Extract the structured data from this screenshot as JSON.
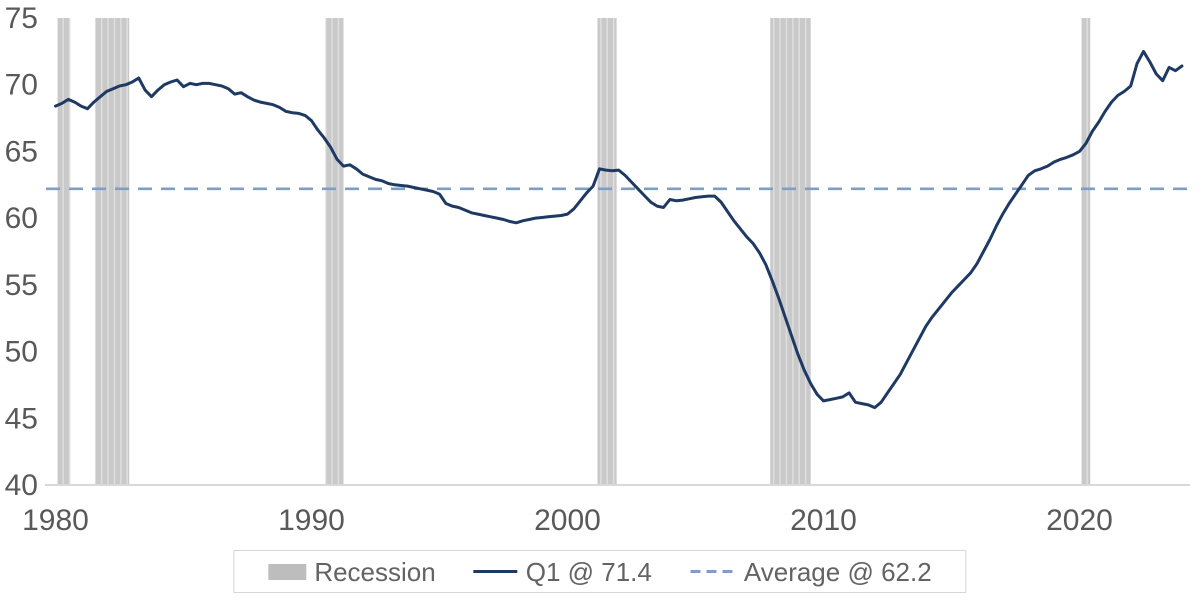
{
  "chart_data": {
    "type": "line",
    "title": "",
    "xlabel": "",
    "ylabel": "",
    "grid": false,
    "legend_position": "bottom",
    "x_ticks": [
      1980,
      1990,
      2000,
      2010,
      2020
    ],
    "y_ticks": [
      75,
      70,
      65,
      60,
      55,
      50,
      45,
      40
    ],
    "x_range": [
      1979.6,
      2024.4
    ],
    "y_range": [
      40,
      75
    ],
    "series": [
      {
        "name": "Q1 @ 71.4",
        "style": "solid",
        "color": "#1e3a64",
        "frequency": "quarterly",
        "start_year": 1980,
        "last_point_label": "Q1 @ 71.4",
        "last_value": 71.4,
        "values": [
          68.4,
          68.6,
          68.9,
          68.7,
          68.4,
          68.2,
          68.7,
          69.1,
          69.5,
          69.7,
          69.9,
          70.0,
          70.2,
          70.5,
          69.6,
          69.1,
          69.6,
          70.0,
          70.2,
          70.35,
          69.85,
          70.1,
          70.0,
          70.1,
          70.1,
          70.0,
          69.9,
          69.7,
          69.3,
          69.4,
          69.1,
          68.85,
          68.7,
          68.6,
          68.5,
          68.3,
          68.0,
          67.9,
          67.85,
          67.7,
          67.3,
          66.6,
          66.0,
          65.3,
          64.4,
          63.9,
          64.0,
          63.7,
          63.3,
          63.1,
          62.9,
          62.8,
          62.6,
          62.5,
          62.45,
          62.4,
          62.3,
          62.2,
          62.1,
          62.0,
          61.8,
          61.1,
          60.9,
          60.8,
          60.6,
          60.4,
          60.3,
          60.2,
          60.1,
          60.0,
          59.9,
          59.75,
          59.65,
          59.8,
          59.9,
          60.0,
          60.05,
          60.1,
          60.15,
          60.2,
          60.3,
          60.7,
          61.3,
          61.9,
          62.4,
          63.7,
          63.6,
          63.55,
          63.6,
          63.2,
          62.7,
          62.2,
          61.7,
          61.2,
          60.9,
          60.8,
          61.4,
          61.3,
          61.35,
          61.45,
          61.55,
          61.6,
          61.65,
          61.65,
          61.2,
          60.5,
          59.8,
          59.2,
          58.6,
          58.1,
          57.4,
          56.5,
          55.3,
          54.0,
          52.6,
          51.2,
          49.8,
          48.6,
          47.6,
          46.8,
          46.3,
          46.4,
          46.5,
          46.6,
          46.9,
          46.2,
          46.1,
          46.0,
          45.8,
          46.2,
          46.9,
          47.6,
          48.3,
          49.2,
          50.1,
          51.0,
          51.9,
          52.6,
          53.2,
          53.8,
          54.4,
          54.9,
          55.4,
          55.9,
          56.6,
          57.5,
          58.4,
          59.4,
          60.3,
          61.1,
          61.8,
          62.5,
          63.2,
          63.55,
          63.7,
          63.9,
          64.2,
          64.4,
          64.55,
          64.75,
          65.0,
          65.6,
          66.5,
          67.2,
          68.0,
          68.7,
          69.2,
          69.5,
          69.9,
          71.6,
          72.5,
          71.7,
          70.8,
          70.3,
          71.3,
          71.05,
          71.4
        ]
      }
    ],
    "average_line": {
      "label": "Average @ 62.2",
      "value": 62.2,
      "style": "dashed",
      "color": "#7f9ec3"
    },
    "recessions": {
      "label": "Recession",
      "color": "#c9c9c9",
      "stripe_color": "#dedede",
      "periods": [
        [
          1980.08,
          1980.58
        ],
        [
          1981.54,
          1982.88
        ],
        [
          1990.54,
          1991.25
        ],
        [
          2001.17,
          2001.92
        ],
        [
          2007.92,
          2009.5
        ],
        [
          2020.08,
          2020.42
        ]
      ]
    }
  },
  "legend": {
    "items": [
      {
        "label": "Recession",
        "marker": "rect"
      },
      {
        "label": "Q1 @ 71.4",
        "marker": "line"
      },
      {
        "label": "Average @ 62.2",
        "marker": "dashed"
      }
    ]
  },
  "colors": {
    "line": "#1e3a64",
    "average": "#7f9ec3",
    "recession": "#c9c9c9",
    "axis_text": "#595959",
    "axis_line": "#d9d9d9",
    "background": "#ffffff"
  }
}
